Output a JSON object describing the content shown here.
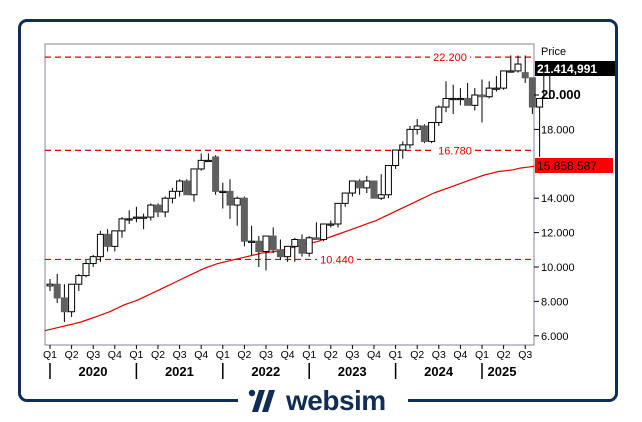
{
  "brand": {
    "name": "websim",
    "color": "#0f2d55"
  },
  "chart_data": {
    "type": "candlestick",
    "title": "",
    "ylabel": "Price",
    "ylim": [
      5.5,
      23.0
    ],
    "y_ticks": [
      "6.000",
      "8.000",
      "10.000",
      "12.000",
      "14.000",
      "18.000",
      "20.000"
    ],
    "y_tick_values": [
      6,
      8,
      10,
      12,
      14,
      18,
      20
    ],
    "x_quarter_labels": [
      "Q1",
      "Q2",
      "Q3",
      "Q4",
      "Q1",
      "Q2",
      "Q3",
      "Q4",
      "Q1",
      "Q2",
      "Q3",
      "Q4",
      "Q1",
      "Q2",
      "Q3",
      "Q4",
      "Q1",
      "Q2",
      "Q3",
      "Q4",
      "Q1",
      "Q2",
      "Q3"
    ],
    "x_year_labels": [
      "2020",
      "2021",
      "2022",
      "2023",
      "2024",
      "2025"
    ],
    "current_price_label": "21.414,991",
    "ma_label": "15.858,587",
    "ma_value": 15.86,
    "colors": {
      "up": "#ffffff",
      "down": "#606060",
      "wick": "#000000",
      "ma": "#e00000",
      "level": "#e00000",
      "price_tag_bg": "#000000",
      "ma_tag_bg": "#ff0000"
    },
    "levels": [
      {
        "value": 22.2,
        "label": "22.200"
      },
      {
        "value": 16.78,
        "label": "16.780"
      },
      {
        "value": 10.44,
        "label": "10.440"
      }
    ],
    "candles_monthly": [
      {
        "o": 8.9,
        "h": 9.3,
        "l": 8.6,
        "c": 9.0
      },
      {
        "o": 9.0,
        "h": 9.6,
        "l": 7.9,
        "c": 8.2
      },
      {
        "o": 8.2,
        "h": 9.0,
        "l": 6.8,
        "c": 7.4
      },
      {
        "o": 7.4,
        "h": 9.0,
        "l": 7.1,
        "c": 9.0
      },
      {
        "o": 9.0,
        "h": 9.6,
        "l": 8.6,
        "c": 9.5
      },
      {
        "o": 9.5,
        "h": 10.4,
        "l": 9.4,
        "c": 10.2
      },
      {
        "o": 10.2,
        "h": 10.7,
        "l": 10.0,
        "c": 10.6
      },
      {
        "o": 10.6,
        "h": 12.1,
        "l": 10.3,
        "c": 11.9
      },
      {
        "o": 11.9,
        "h": 12.2,
        "l": 10.9,
        "c": 11.2
      },
      {
        "o": 11.2,
        "h": 12.1,
        "l": 10.9,
        "c": 12.1
      },
      {
        "o": 12.1,
        "h": 12.9,
        "l": 11.7,
        "c": 12.8
      },
      {
        "o": 12.8,
        "h": 13.3,
        "l": 12.5,
        "c": 12.8
      },
      {
        "o": 12.9,
        "h": 13.5,
        "l": 12.6,
        "c": 12.9
      },
      {
        "o": 12.9,
        "h": 13.1,
        "l": 12.2,
        "c": 12.9
      },
      {
        "o": 12.9,
        "h": 13.7,
        "l": 12.7,
        "c": 13.6
      },
      {
        "o": 13.6,
        "h": 13.7,
        "l": 12.9,
        "c": 13.2
      },
      {
        "o": 13.2,
        "h": 14.1,
        "l": 12.9,
        "c": 14.0
      },
      {
        "o": 14.0,
        "h": 14.6,
        "l": 13.7,
        "c": 14.4
      },
      {
        "o": 14.4,
        "h": 15.1,
        "l": 14.1,
        "c": 15.0
      },
      {
        "o": 15.0,
        "h": 15.1,
        "l": 14.2,
        "c": 14.2
      },
      {
        "o": 14.2,
        "h": 15.7,
        "l": 13.8,
        "c": 15.7
      },
      {
        "o": 15.7,
        "h": 16.6,
        "l": 15.6,
        "c": 16.2
      },
      {
        "o": 16.2,
        "h": 16.6,
        "l": 16.2,
        "c": 16.2
      },
      {
        "o": 16.4,
        "h": 16.5,
        "l": 14.2,
        "c": 14.4
      },
      {
        "o": 14.4,
        "h": 14.9,
        "l": 13.4,
        "c": 14.4
      },
      {
        "o": 14.4,
        "h": 15.1,
        "l": 12.8,
        "c": 13.6
      },
      {
        "o": 13.6,
        "h": 14.1,
        "l": 12.4,
        "c": 14.0
      },
      {
        "o": 14.0,
        "h": 14.1,
        "l": 11.2,
        "c": 11.5
      },
      {
        "o": 11.5,
        "h": 12.4,
        "l": 10.7,
        "c": 11.5
      },
      {
        "o": 11.5,
        "h": 11.8,
        "l": 10.0,
        "c": 10.9
      },
      {
        "o": 10.9,
        "h": 11.8,
        "l": 9.8,
        "c": 11.8
      },
      {
        "o": 11.8,
        "h": 12.3,
        "l": 10.8,
        "c": 11.0
      },
      {
        "o": 11.0,
        "h": 11.6,
        "l": 10.4,
        "c": 10.6
      },
      {
        "o": 10.6,
        "h": 11.0,
        "l": 10.3,
        "c": 11.2
      },
      {
        "o": 11.2,
        "h": 11.7,
        "l": 10.3,
        "c": 11.6
      },
      {
        "o": 11.6,
        "h": 11.9,
        "l": 10.6,
        "c": 10.8
      },
      {
        "o": 10.8,
        "h": 11.8,
        "l": 10.6,
        "c": 11.7
      },
      {
        "o": 11.7,
        "h": 12.6,
        "l": 11.6,
        "c": 11.6
      },
      {
        "o": 11.6,
        "h": 12.5,
        "l": 11.5,
        "c": 12.5
      },
      {
        "o": 12.5,
        "h": 12.7,
        "l": 12.3,
        "c": 12.5
      },
      {
        "o": 12.5,
        "h": 13.7,
        "l": 12.3,
        "c": 13.7
      },
      {
        "o": 13.7,
        "h": 14.3,
        "l": 13.5,
        "c": 14.3
      },
      {
        "o": 14.3,
        "h": 15.0,
        "l": 14.1,
        "c": 15.0
      },
      {
        "o": 15.0,
        "h": 15.1,
        "l": 14.2,
        "c": 14.6
      },
      {
        "o": 14.6,
        "h": 15.3,
        "l": 14.3,
        "c": 15.0
      },
      {
        "o": 15.0,
        "h": 15.0,
        "l": 14.0,
        "c": 14.0
      },
      {
        "o": 14.0,
        "h": 15.4,
        "l": 13.9,
        "c": 14.2
      },
      {
        "o": 14.2,
        "h": 15.9,
        "l": 14.0,
        "c": 15.9
      },
      {
        "o": 15.9,
        "h": 16.8,
        "l": 15.7,
        "c": 16.8
      },
      {
        "o": 16.8,
        "h": 17.3,
        "l": 16.3,
        "c": 17.1
      },
      {
        "o": 17.1,
        "h": 18.2,
        "l": 16.9,
        "c": 18.0
      },
      {
        "o": 18.0,
        "h": 18.6,
        "l": 17.7,
        "c": 18.2
      },
      {
        "o": 18.2,
        "h": 18.3,
        "l": 17.2,
        "c": 17.3
      },
      {
        "o": 17.3,
        "h": 18.4,
        "l": 17.2,
        "c": 18.4
      },
      {
        "o": 18.4,
        "h": 19.4,
        "l": 18.2,
        "c": 19.3
      },
      {
        "o": 19.3,
        "h": 20.8,
        "l": 19.0,
        "c": 19.8
      },
      {
        "o": 19.8,
        "h": 20.6,
        "l": 18.9,
        "c": 19.8
      },
      {
        "o": 19.8,
        "h": 20.4,
        "l": 19.4,
        "c": 19.8
      },
      {
        "o": 19.8,
        "h": 20.7,
        "l": 19.5,
        "c": 19.4
      },
      {
        "o": 19.4,
        "h": 20.4,
        "l": 19.1,
        "c": 20.0
      },
      {
        "o": 20.0,
        "h": 20.9,
        "l": 18.4,
        "c": 19.9
      },
      {
        "o": 19.9,
        "h": 20.8,
        "l": 19.8,
        "c": 20.4
      },
      {
        "o": 20.4,
        "h": 21.1,
        "l": 20.2,
        "c": 20.4
      },
      {
        "o": 20.4,
        "h": 21.4,
        "l": 20.3,
        "c": 21.4
      },
      {
        "o": 21.4,
        "h": 22.3,
        "l": 21.3,
        "c": 21.4
      },
      {
        "o": 21.4,
        "h": 22.3,
        "l": 21.3,
        "c": 21.8
      },
      {
        "o": 21.3,
        "h": 22.3,
        "l": 20.7,
        "c": 21.0
      },
      {
        "o": 21.0,
        "h": 21.0,
        "l": 18.9,
        "c": 19.3
      },
      {
        "o": 19.3,
        "h": 19.8,
        "l": 16.4,
        "c": 19.8
      },
      {
        "o": 19.8,
        "h": 21.6,
        "l": 19.8,
        "c": 21.4
      }
    ],
    "ma_series": [
      6.3,
      6.4,
      6.5,
      6.6,
      6.7,
      6.8,
      6.95,
      7.1,
      7.25,
      7.4,
      7.6,
      7.8,
      7.95,
      8.1,
      8.3,
      8.5,
      8.7,
      8.9,
      9.1,
      9.3,
      9.5,
      9.7,
      9.9,
      10.05,
      10.2,
      10.3,
      10.4,
      10.5,
      10.6,
      10.7,
      10.8,
      10.85,
      10.9,
      11.0,
      11.1,
      11.2,
      11.3,
      11.4,
      11.5,
      11.65,
      11.8,
      11.95,
      12.1,
      12.25,
      12.4,
      12.55,
      12.7,
      12.9,
      13.1,
      13.3,
      13.5,
      13.7,
      13.9,
      14.1,
      14.3,
      14.45,
      14.6,
      14.75,
      14.9,
      15.05,
      15.2,
      15.35,
      15.45,
      15.55,
      15.6,
      15.65,
      15.75,
      15.8,
      15.86
    ]
  }
}
